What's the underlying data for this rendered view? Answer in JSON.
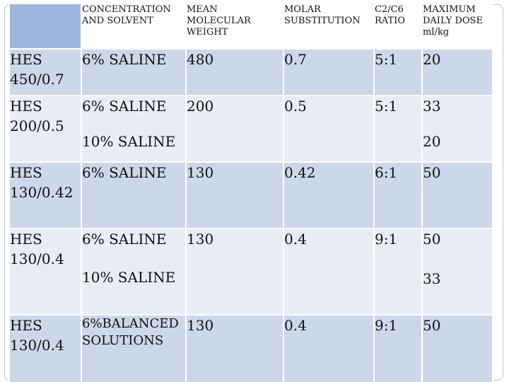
{
  "table": {
    "headers": {
      "concentration": "CONCENTRATION AND SOLVENT",
      "molecular_weight": "MEAN MOLECULAR WEIGHT",
      "molar_substitution": "MOLAR SUBSTITUTION",
      "ratio": "C2/C6 RATIO",
      "max_dose": "MAXIMUM DAILY DOSE ml/kg"
    },
    "rows": [
      {
        "name_line1": "HES",
        "name_line2": "450/0.7",
        "solvent1": "6% SALINE",
        "solvent2": "",
        "weight": "480",
        "substitution": "0.7",
        "ratio": "5:1",
        "dose1": "20",
        "dose2": ""
      },
      {
        "name_line1": "HES",
        "name_line2": "200/0.5",
        "solvent1": "6% SALINE",
        "solvent2": "10% SALINE",
        "weight": "200",
        "substitution": "0.5",
        "ratio": "5:1",
        "dose1": "33",
        "dose2": "20"
      },
      {
        "name_line1": "HES",
        "name_line2": "130/0.42",
        "solvent1": "6% SALINE",
        "solvent2": "",
        "weight": "130",
        "substitution": "0.42",
        "ratio": "6:1",
        "dose1": "50",
        "dose2": ""
      },
      {
        "name_line1": "HES",
        "name_line2": "130/0.4",
        "solvent1": "6% SALINE",
        "solvent2": "10% SALINE",
        "weight": "130",
        "substitution": "0.4",
        "ratio": "9:1",
        "dose1": "50",
        "dose2": "33"
      },
      {
        "name_line1": "HES",
        "name_line2": "130/0.4",
        "solvent1": "6%BALANCED",
        "solvent2": "SOLUTIONS",
        "weight": "130",
        "substitution": "0.4",
        "ratio": "9:1",
        "dose1": "50",
        "dose2": ""
      }
    ]
  },
  "colors": {
    "header_corner": "#9fb7dd",
    "row_dark": "#cdd7ea",
    "row_light": "#e7ecf5",
    "frame": "#b8c7db"
  }
}
